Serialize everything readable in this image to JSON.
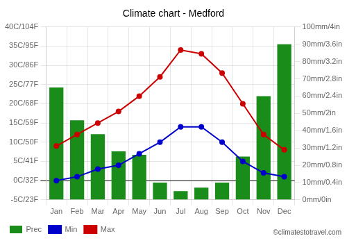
{
  "chart_data": {
    "type": "bar",
    "title": "Climate chart - Medford",
    "categories": [
      "Jan",
      "Feb",
      "Mar",
      "Apr",
      "May",
      "Jun",
      "Jul",
      "Aug",
      "Sep",
      "Oct",
      "Nov",
      "Dec"
    ],
    "series": [
      {
        "name": "Prec",
        "type": "bar",
        "color": "#1a8c1a",
        "axis": "y2",
        "values": [
          65,
          46,
          38,
          28,
          26,
          10,
          5,
          7,
          10,
          25,
          60,
          90
        ]
      },
      {
        "name": "Min",
        "type": "line",
        "color": "#0000cc",
        "marker": "circle",
        "values": [
          0,
          1,
          3,
          4,
          7,
          10,
          14,
          14,
          10,
          5,
          2,
          1
        ]
      },
      {
        "name": "Max",
        "type": "line",
        "color": "#cc0000",
        "marker": "circle",
        "values": [
          9,
          12,
          15,
          18,
          22,
          27,
          34,
          33,
          28,
          20,
          12,
          8
        ]
      }
    ],
    "ylim": [
      -5,
      40
    ],
    "yticks": [
      {
        "value": -5,
        "label": "-5C/23F"
      },
      {
        "value": 0,
        "label": "0C/32F"
      },
      {
        "value": 5,
        "label": "5C/41F"
      },
      {
        "value": 10,
        "label": "10C/50F"
      },
      {
        "value": 15,
        "label": "15C/59F"
      },
      {
        "value": 20,
        "label": "20C/68F"
      },
      {
        "value": 25,
        "label": "25C/77F"
      },
      {
        "value": 30,
        "label": "30C/86F"
      },
      {
        "value": 35,
        "label": "35C/95F"
      },
      {
        "value": 40,
        "label": "40C/104F"
      }
    ],
    "y2lim": [
      0,
      100
    ],
    "y2ticks": [
      {
        "value": 0,
        "label": "0mm/0in"
      },
      {
        "value": 10,
        "label": "10mm/0.4in"
      },
      {
        "value": 20,
        "label": "20mm/0.8in"
      },
      {
        "value": 30,
        "label": "30mm/1.2in"
      },
      {
        "value": 40,
        "label": "40mm/1.6in"
      },
      {
        "value": 50,
        "label": "50mm/2in"
      },
      {
        "value": 60,
        "label": "60mm/2.4in"
      },
      {
        "value": 70,
        "label": "70mm/2.8in"
      },
      {
        "value": 80,
        "label": "80mm/3.2in"
      },
      {
        "value": 90,
        "label": "90mm/3.6in"
      },
      {
        "value": 100,
        "label": "100mm/4in"
      }
    ],
    "grid": true,
    "legend": "bottom",
    "annotations": [
      {
        "text": "©climatestotravel.com"
      }
    ]
  }
}
